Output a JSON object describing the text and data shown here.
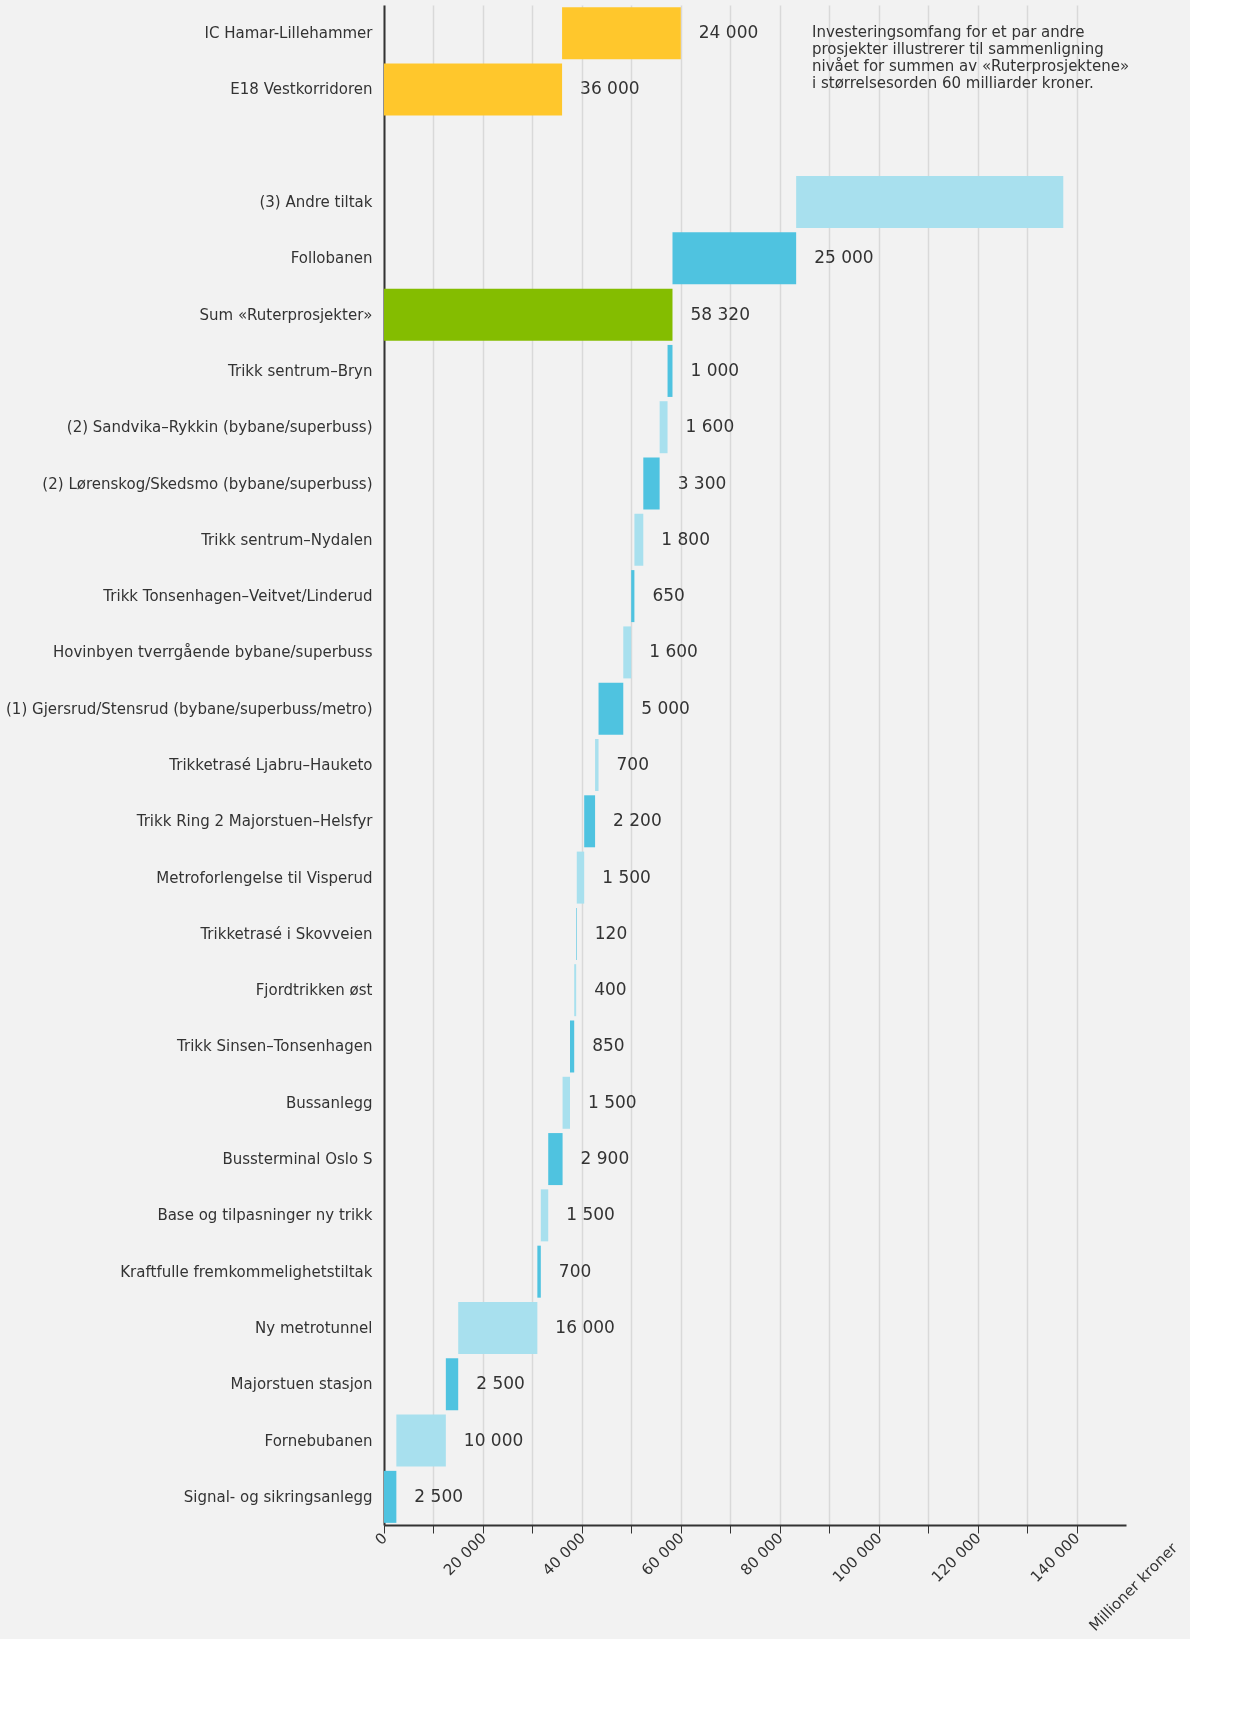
{
  "chart_data": {
    "type": "bar",
    "orientation": "horizontal",
    "xlabel": "Millioner kroner",
    "categories": [
      "IC Hamar-Lillehammer",
      "E18 Vestkorridoren",
      null,
      "(3) Andre tiltak",
      "Follobanen",
      "Sum «Ruterprosjekter»",
      "Trikk sentrum–Bryn",
      "(2) Sandvika–Rykkin (bybane/superbuss)",
      "(2) Lørenskog/Skedsmo (bybane/superbuss)",
      "Trikk sentrum–Nydalen",
      "Trikk Tonsenhagen–Veitvet/Linderud",
      "Hovinbyen tverrgående bybane/superbuss",
      "(1) Gjersrud/Stensrud (bybane/superbuss/metro)",
      "Trikketrasé Ljabru–Hauketo",
      "Trikk Ring 2 Majorstuen–Helsfyr",
      "Metroforlengelse til Visperud",
      "Trikketrasé i Skovveien",
      "Fjordtrikken øst",
      "Trikk Sinsen–Tonsenhagen",
      "Bussanlegg",
      "Bussterminal Oslo S",
      "Base og tilpasninger ny trikk",
      "Kraftfulle fremkommelighetstiltak",
      "Ny metrotunnel",
      "Majorstuen stasjon",
      "Fornebubanen",
      "Signal- og sikringsanlegg"
    ],
    "values": [
      24000,
      36000,
      null,
      54000,
      25000,
      58320,
      1000,
      1600,
      3300,
      1800,
      650,
      1600,
      5000,
      700,
      2200,
      1500,
      120,
      400,
      850,
      1500,
      2900,
      1500,
      700,
      16000,
      2500,
      10000,
      2500
    ],
    "base": [
      36000,
      0,
      null,
      83320,
      58320,
      0,
      57320,
      55720,
      52420,
      50620,
      49970,
      48370,
      43370,
      42670,
      40470,
      38970,
      38850,
      38450,
      37600,
      36100,
      33200,
      31700,
      31000,
      15000,
      12500,
      2500,
      0
    ],
    "value_labels": [
      "24 000",
      "36 000",
      null,
      null,
      "25 000",
      "58 320",
      "1 000",
      "1 600",
      "3 300",
      "1 800",
      "650",
      "1 600",
      "5 000",
      "700",
      "2 200",
      "1 500",
      "120",
      "400",
      "850",
      "1 500",
      "2 900",
      "1 500",
      "700",
      "16 000",
      "2 500",
      "10 000",
      "2 500"
    ],
    "colors": [
      "#ffc72c",
      "#ffc72c",
      null,
      "#a8e0ee",
      "#4fc3e0",
      "#84bd00",
      "#4fc3e0",
      "#a8e0ee",
      "#4fc3e0",
      "#a8e0ee",
      "#4fc3e0",
      "#a8e0ee",
      "#4fc3e0",
      "#a8e0ee",
      "#4fc3e0",
      "#a8e0ee",
      "#4fc3e0",
      "#a8e0ee",
      "#4fc3e0",
      "#a8e0ee",
      "#4fc3e0",
      "#a8e0ee",
      "#4fc3e0",
      "#a8e0ee",
      "#4fc3e0",
      "#a8e0ee",
      "#4fc3e0"
    ],
    "xlim": [
      0,
      150000
    ],
    "xticks": [
      0,
      {
        "value": 10000,
        "label": null
      },
      {
        "value": 20000,
        "label": "20 000"
      },
      {
        "value": 30000,
        "label": null
      },
      {
        "value": 40000,
        "label": "40 000"
      },
      {
        "value": 50000,
        "label": null
      },
      {
        "value": 60000,
        "label": "60 000"
      },
      {
        "value": 70000,
        "label": null
      },
      {
        "value": 80000,
        "label": "80 000"
      },
      {
        "value": 90000,
        "label": null
      },
      {
        "value": 100000,
        "label": "100 000"
      },
      {
        "value": 110000,
        "label": null
      },
      {
        "value": 120000,
        "label": "120 000"
      },
      {
        "value": 130000,
        "label": null
      },
      {
        "value": 140000,
        "label": "140 000"
      }
    ],
    "grid": "x",
    "annotations": [
      "Investeringsomfang for et par andre\nprosjekter illustrerer til sammenligning\nnivået for summen av «Ruterprosjektene»\ni størrelsesorden 60 milliarder kroner."
    ]
  }
}
